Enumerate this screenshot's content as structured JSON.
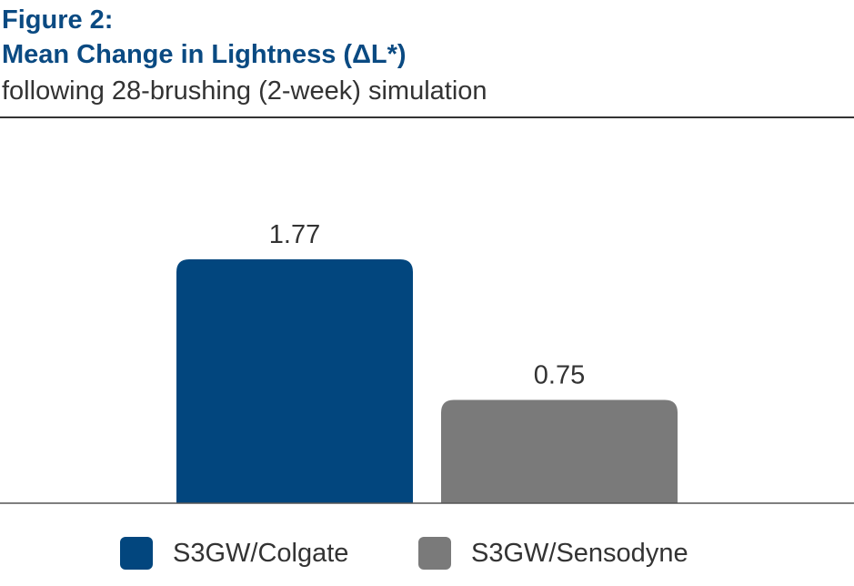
{
  "figure_label": "Figure 2:",
  "chart_data": {
    "type": "bar",
    "title": "Mean Change in Lightness (ΔL*)",
    "subtitle": "following 28-brushing (2-week) simulation",
    "categories": [
      "S3GW/Colgate",
      "S3GW/Sensodyne"
    ],
    "values": [
      1.77,
      0.75
    ],
    "data_labels": [
      "1.77",
      "0.75"
    ],
    "colors": [
      "#02467e",
      "#7a7a7a"
    ],
    "ylim": [
      0,
      1.77
    ],
    "xlabel": "",
    "ylabel": "",
    "grid": false,
    "legend": "bottom-center"
  }
}
